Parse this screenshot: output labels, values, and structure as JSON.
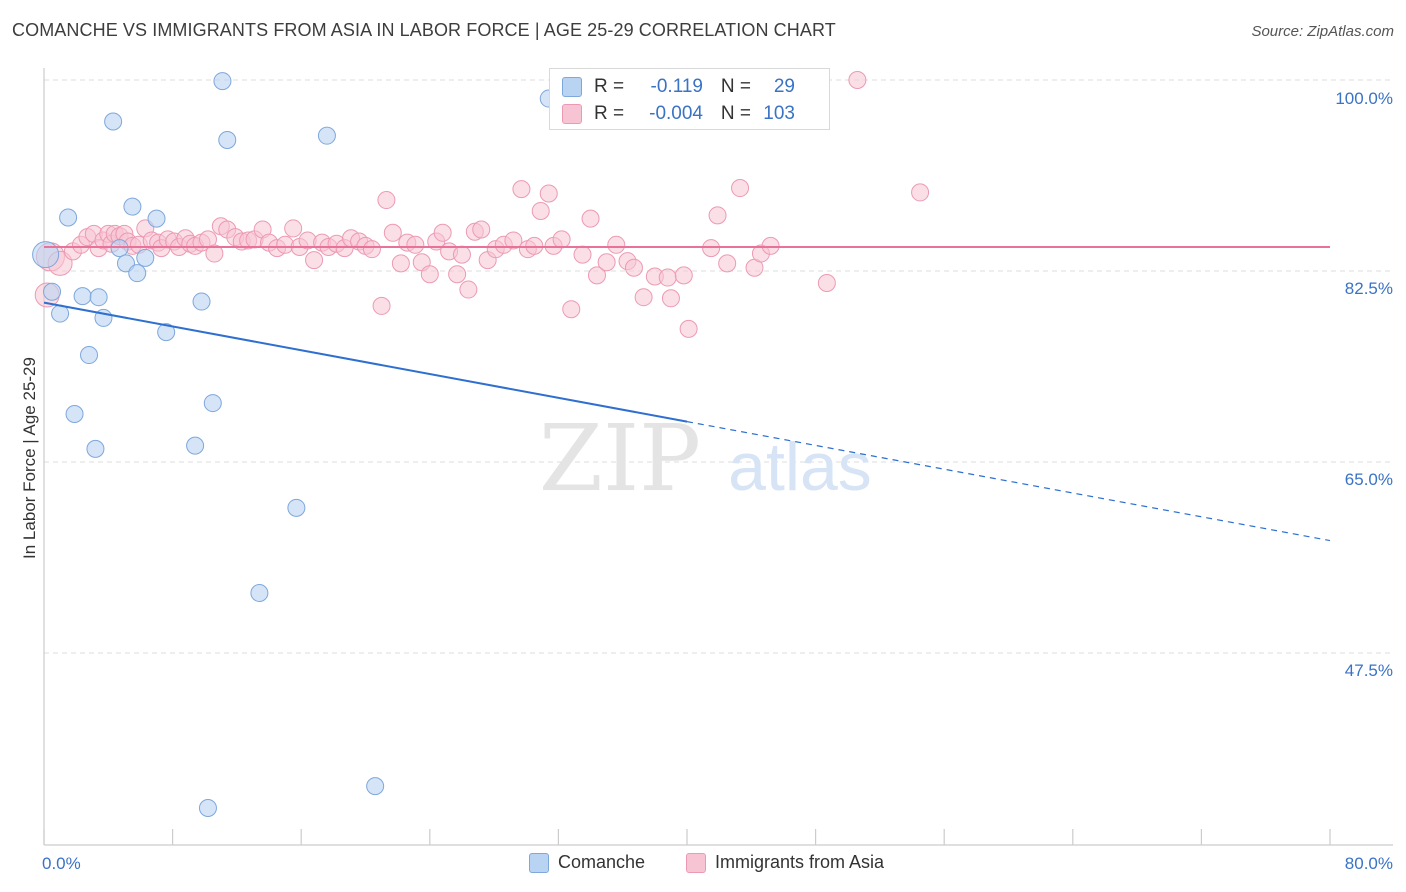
{
  "title": "COMANCHE VS IMMIGRANTS FROM ASIA IN LABOR FORCE | AGE 25-29 CORRELATION CHART",
  "source": "Source: ZipAtlas.com",
  "watermark": {
    "zip": "ZIP",
    "atlas": "atlas"
  },
  "colors": {
    "blue_fill": "#b9d3f2",
    "blue_stroke": "#7ea7dc",
    "blue_line": "#2e6fcf",
    "pink_fill": "#f7c4d4",
    "pink_stroke": "#ec9ab3",
    "pink_line": "#e8729a",
    "grid": "#dddddd",
    "axis_text": "#3a73c6"
  },
  "stats": [
    {
      "series": "Comanche",
      "r_label": "R =",
      "r_value": "-0.119",
      "n_label": "N =",
      "n_value": "29"
    },
    {
      "series": "Immigrants from Asia",
      "r_label": "R =",
      "r_value": "-0.004",
      "n_label": "N =",
      "n_value": "103"
    }
  ],
  "chart_data": {
    "type": "scatter",
    "title": "COMANCHE VS IMMIGRANTS FROM ASIA IN LABOR FORCE | AGE 25-29 CORRELATION CHART",
    "xlabel": "",
    "ylabel": "In Labor Force | Age 25-29",
    "xlim": [
      0,
      80
    ],
    "ylim": [
      30,
      100
    ],
    "x_tick_labels": [
      "0.0%",
      "80.0%"
    ],
    "y_ticks": [
      47.5,
      65.0,
      82.5,
      100.0
    ],
    "y_tick_labels": [
      "47.5%",
      "65.0%",
      "82.5%",
      "100.0%"
    ],
    "grid": true,
    "legend": [
      "Comanche",
      "Immigrants from Asia"
    ],
    "series": [
      {
        "name": "Comanche",
        "r": -0.119,
        "n": 29,
        "trend": {
          "x0": 0,
          "y0": 79.6,
          "x_solid_end": 40,
          "x1": 80,
          "y1": 57.8
        },
        "points": [
          [
            0.1,
            84.0
          ],
          [
            0.5,
            80.6
          ],
          [
            1.0,
            78.6
          ],
          [
            1.5,
            87.4
          ],
          [
            1.9,
            69.4
          ],
          [
            2.4,
            80.2
          ],
          [
            2.8,
            74.8
          ],
          [
            3.2,
            66.2
          ],
          [
            3.4,
            80.1
          ],
          [
            3.7,
            78.2
          ],
          [
            4.3,
            96.2
          ],
          [
            4.7,
            84.6
          ],
          [
            5.1,
            83.2
          ],
          [
            5.5,
            88.4
          ],
          [
            5.8,
            82.3
          ],
          [
            6.3,
            83.7
          ],
          [
            7.0,
            87.3
          ],
          [
            7.6,
            76.9
          ],
          [
            9.4,
            66.5
          ],
          [
            9.8,
            79.7
          ],
          [
            10.2,
            33.3
          ],
          [
            10.5,
            70.4
          ],
          [
            11.1,
            99.9
          ],
          [
            11.4,
            94.5
          ],
          [
            13.4,
            53.0
          ],
          [
            15.7,
            60.8
          ],
          [
            17.6,
            94.9
          ],
          [
            20.6,
            35.3
          ],
          [
            31.4,
            98.3
          ]
        ]
      },
      {
        "name": "Immigrants from Asia",
        "r": -0.004,
        "n": 103,
        "trend": {
          "x0": 0,
          "y0": 84.7,
          "x1": 80,
          "y1": 84.7
        },
        "points": [
          [
            0.2,
            80.3
          ],
          [
            0.4,
            83.8
          ],
          [
            1.0,
            83.2
          ],
          [
            1.8,
            84.3
          ],
          [
            2.3,
            84.9
          ],
          [
            2.7,
            85.6
          ],
          [
            3.1,
            85.9
          ],
          [
            3.4,
            84.6
          ],
          [
            3.7,
            85.3
          ],
          [
            4.0,
            85.9
          ],
          [
            4.2,
            85.0
          ],
          [
            4.4,
            85.9
          ],
          [
            4.7,
            85.7
          ],
          [
            5.0,
            85.9
          ],
          [
            5.2,
            85.2
          ],
          [
            5.5,
            84.8
          ],
          [
            5.9,
            84.9
          ],
          [
            6.3,
            86.4
          ],
          [
            6.7,
            85.3
          ],
          [
            7.1,
            85.1
          ],
          [
            7.3,
            84.6
          ],
          [
            7.7,
            85.4
          ],
          [
            8.1,
            85.2
          ],
          [
            8.4,
            84.7
          ],
          [
            8.8,
            85.5
          ],
          [
            9.1,
            85.0
          ],
          [
            9.4,
            84.8
          ],
          [
            9.8,
            85.1
          ],
          [
            10.2,
            85.4
          ],
          [
            10.6,
            84.1
          ],
          [
            11.0,
            86.6
          ],
          [
            11.4,
            86.3
          ],
          [
            11.9,
            85.6
          ],
          [
            12.3,
            85.2
          ],
          [
            12.7,
            85.3
          ],
          [
            13.1,
            85.4
          ],
          [
            13.6,
            86.3
          ],
          [
            14.0,
            85.1
          ],
          [
            14.5,
            84.6
          ],
          [
            15.0,
            84.9
          ],
          [
            15.5,
            86.4
          ],
          [
            15.9,
            84.7
          ],
          [
            16.4,
            85.3
          ],
          [
            16.8,
            83.5
          ],
          [
            17.3,
            85.1
          ],
          [
            17.7,
            84.7
          ],
          [
            18.2,
            85.0
          ],
          [
            18.7,
            84.6
          ],
          [
            19.1,
            85.5
          ],
          [
            19.6,
            85.2
          ],
          [
            20.0,
            84.8
          ],
          [
            20.4,
            84.5
          ],
          [
            21.0,
            79.3
          ],
          [
            21.3,
            89.0
          ],
          [
            21.7,
            86.0
          ],
          [
            22.2,
            83.2
          ],
          [
            22.6,
            85.1
          ],
          [
            23.1,
            84.9
          ],
          [
            23.5,
            83.3
          ],
          [
            24.0,
            82.2
          ],
          [
            24.4,
            85.2
          ],
          [
            24.8,
            86.0
          ],
          [
            25.2,
            84.3
          ],
          [
            25.7,
            82.2
          ],
          [
            26.0,
            84.0
          ],
          [
            26.4,
            80.8
          ],
          [
            26.8,
            86.1
          ],
          [
            27.2,
            86.3
          ],
          [
            27.6,
            83.5
          ],
          [
            28.1,
            84.5
          ],
          [
            28.6,
            84.9
          ],
          [
            29.2,
            85.3
          ],
          [
            29.7,
            90.0
          ],
          [
            30.1,
            84.5
          ],
          [
            30.5,
            84.8
          ],
          [
            30.9,
            88.0
          ],
          [
            31.4,
            89.6
          ],
          [
            31.7,
            84.8
          ],
          [
            32.2,
            85.4
          ],
          [
            32.8,
            79.0
          ],
          [
            33.5,
            84.0
          ],
          [
            34.0,
            87.3
          ],
          [
            34.4,
            82.1
          ],
          [
            35.0,
            83.3
          ],
          [
            35.6,
            84.9
          ],
          [
            36.3,
            83.4
          ],
          [
            36.7,
            82.8
          ],
          [
            37.3,
            80.1
          ],
          [
            38.0,
            82.0
          ],
          [
            38.8,
            81.9
          ],
          [
            39.0,
            80.0
          ],
          [
            39.8,
            82.1
          ],
          [
            40.1,
            77.2
          ],
          [
            41.5,
            84.6
          ],
          [
            41.9,
            87.6
          ],
          [
            42.5,
            83.2
          ],
          [
            43.3,
            90.1
          ],
          [
            44.2,
            82.8
          ],
          [
            44.6,
            84.1
          ],
          [
            45.2,
            84.8
          ],
          [
            48.7,
            81.4
          ],
          [
            50.6,
            100.0
          ],
          [
            54.5,
            89.7
          ]
        ]
      }
    ]
  }
}
